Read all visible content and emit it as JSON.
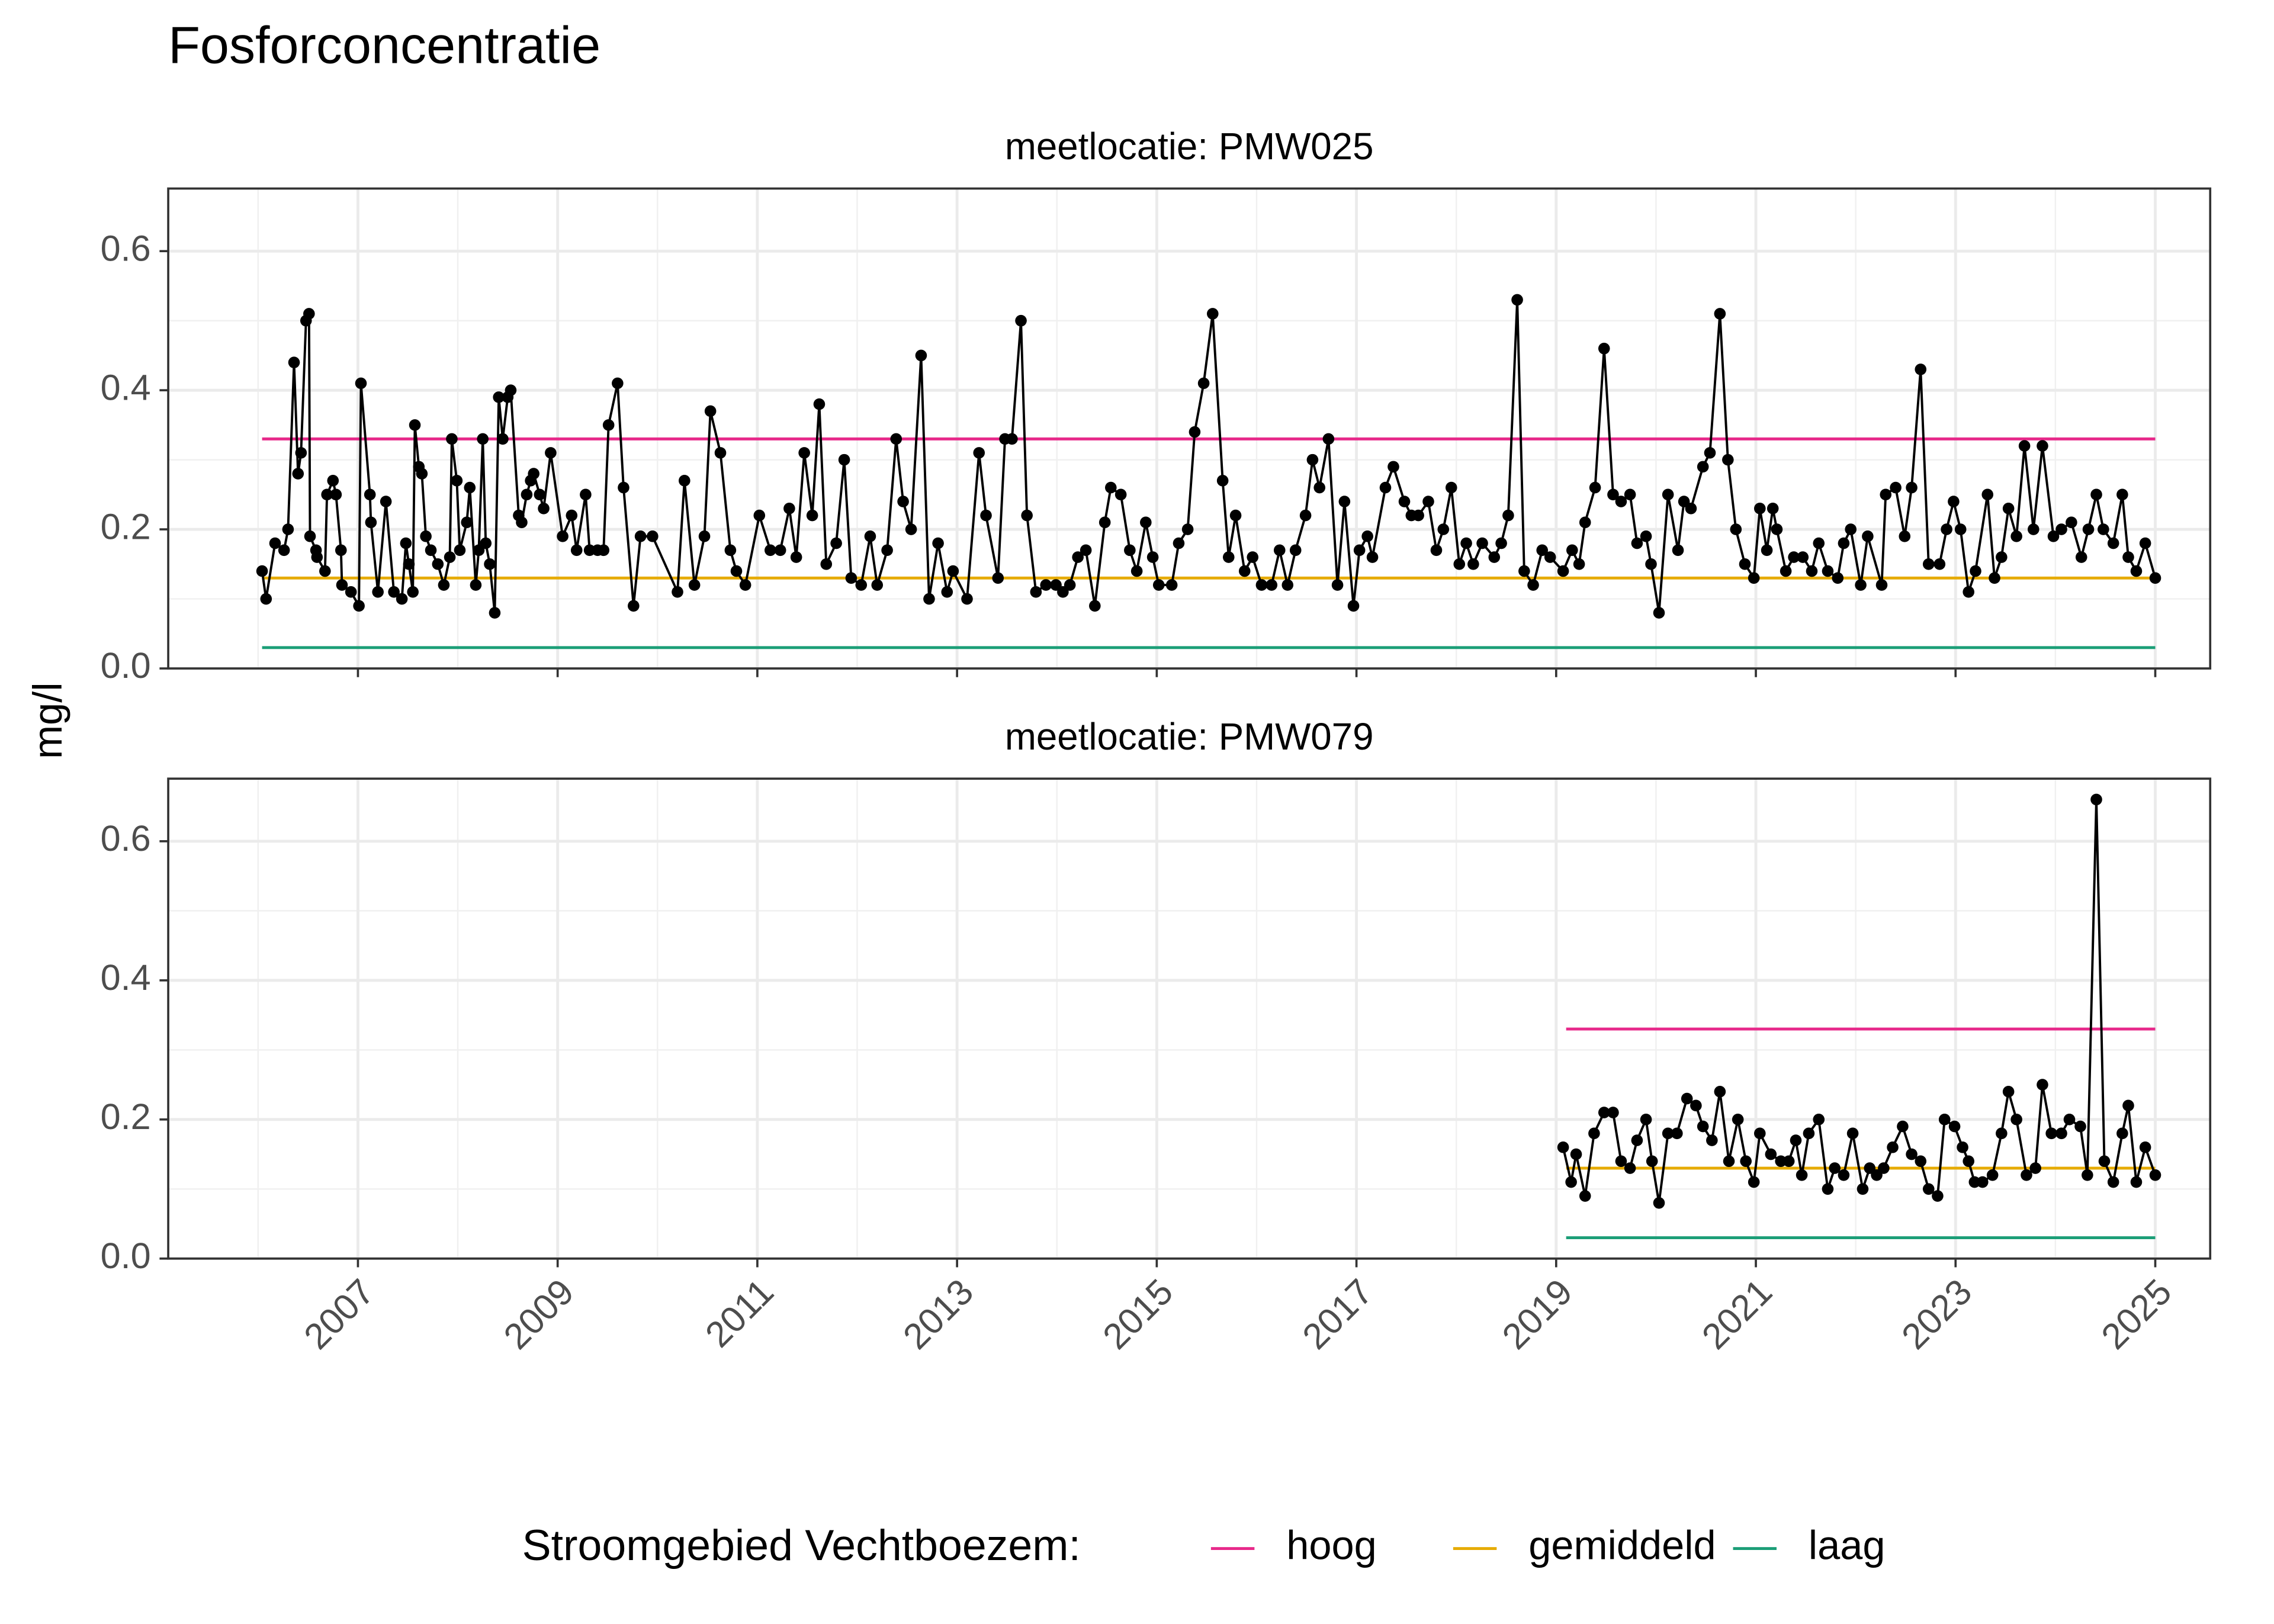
{
  "title": "Fosforconcentratie",
  "y_label": "mg/l",
  "legend_title": "Stroomgebied Vechtboezem:",
  "legend_position": "bottom",
  "chart_data": [
    {
      "type": "line",
      "strip": "meetlocatie: PMW025",
      "xlim": [
        2005.1,
        2025.55
      ],
      "xticks": [
        2007,
        2009,
        2011,
        2013,
        2015,
        2017,
        2019,
        2021,
        2023,
        2025
      ],
      "ylim": [
        0,
        0.69
      ],
      "yticks": [
        {
          "value": 0,
          "label": "0.0"
        },
        0.2,
        0.4,
        0.6
      ],
      "grid": true,
      "series": [
        {
          "color": "#000000",
          "x": [
            2006.04,
            2006.08,
            2006.17,
            2006.26,
            2006.3,
            2006.36,
            2006.4,
            2006.43,
            2006.48,
            2006.51,
            2006.52,
            2006.58,
            2006.59,
            2006.67,
            2006.69,
            2006.75,
            2006.78,
            2006.83,
            2006.84,
            2006.93,
            2007.01,
            2007.03,
            2007.12,
            2007.13,
            2007.2,
            2007.28,
            2007.36,
            2007.44,
            2007.48,
            2007.51,
            2007.55,
            2007.57,
            2007.61,
            2007.64,
            2007.68,
            2007.73,
            2007.8,
            2007.86,
            2007.92,
            2007.94,
            2007.99,
            2008.02,
            2008.09,
            2008.12,
            2008.18,
            2008.21,
            2008.25,
            2008.28,
            2008.32,
            2008.37,
            2008.41,
            2008.45,
            2008.5,
            2008.53,
            2008.61,
            2008.64,
            2008.69,
            2008.73,
            2008.76,
            2008.82,
            2008.86,
            2008.93,
            2009.05,
            2009.14,
            2009.19,
            2009.28,
            2009.32,
            2009.4,
            2009.46,
            2009.51,
            2009.6,
            2009.66,
            2009.76,
            2009.83,
            2009.95,
            2010.2,
            2010.27,
            2010.37,
            2010.47,
            2010.53,
            2010.63,
            2010.73,
            2010.79,
            2010.88,
            2011.02,
            2011.13,
            2011.23,
            2011.32,
            2011.39,
            2011.47,
            2011.55,
            2011.62,
            2011.69,
            2011.79,
            2011.87,
            2011.94,
            2012.04,
            2012.13,
            2012.2,
            2012.3,
            2012.39,
            2012.46,
            2012.54,
            2012.64,
            2012.72,
            2012.81,
            2012.9,
            2012.96,
            2013.1,
            2013.22,
            2013.29,
            2013.41,
            2013.48,
            2013.55,
            2013.64,
            2013.7,
            2013.79,
            2013.89,
            2013.99,
            2014.06,
            2014.13,
            2014.21,
            2014.29,
            2014.38,
            2014.48,
            2014.54,
            2014.64,
            2014.73,
            2014.8,
            2014.89,
            2014.96,
            2015.02,
            2015.15,
            2015.22,
            2015.31,
            2015.38,
            2015.47,
            2015.56,
            2015.66,
            2015.72,
            2015.79,
            2015.88,
            2015.96,
            2016.05,
            2016.15,
            2016.23,
            2016.31,
            2016.39,
            2016.49,
            2016.56,
            2016.63,
            2016.72,
            2016.81,
            2016.88,
            2016.97,
            2017.03,
            2017.11,
            2017.16,
            2017.29,
            2017.37,
            2017.48,
            2017.55,
            2017.62,
            2017.72,
            2017.8,
            2017.87,
            2017.95,
            2018.03,
            2018.1,
            2018.17,
            2018.26,
            2018.38,
            2018.45,
            2018.52,
            2018.61,
            2018.68,
            2018.77,
            2018.86,
            2018.94,
            2019.07,
            2019.16,
            2019.23,
            2019.29,
            2019.39,
            2019.48,
            2019.57,
            2019.65,
            2019.74,
            2019.81,
            2019.9,
            2019.95,
            2020.03,
            2020.12,
            2020.22,
            2020.28,
            2020.35,
            2020.47,
            2020.54,
            2020.64,
            2020.72,
            2020.8,
            2020.89,
            2020.98,
            2021.04,
            2021.11,
            2021.17,
            2021.21,
            2021.3,
            2021.38,
            2021.47,
            2021.56,
            2021.63,
            2021.72,
            2021.82,
            2021.88,
            2021.95,
            2022.05,
            2022.12,
            2022.26,
            2022.3,
            2022.4,
            2022.49,
            2022.56,
            2022.65,
            2022.73,
            2022.84,
            2022.91,
            2022.98,
            2023.05,
            2023.13,
            2023.2,
            2023.32,
            2023.39,
            2023.46,
            2023.53,
            2023.61,
            2023.69,
            2023.78,
            2023.87,
            2023.98,
            2024.06,
            2024.16,
            2024.26,
            2024.33,
            2024.41,
            2024.48,
            2024.58,
            2024.67,
            2024.73,
            2024.81,
            2024.9,
            2025.0
          ],
          "values": [
            0.14,
            0.1,
            0.18,
            0.17,
            0.2,
            0.44,
            0.28,
            0.31,
            0.5,
            0.51,
            0.19,
            0.17,
            0.16,
            0.14,
            0.25,
            0.27,
            0.25,
            0.17,
            0.12,
            0.11,
            0.09,
            0.41,
            0.25,
            0.21,
            0.11,
            0.24,
            0.11,
            0.1,
            0.18,
            0.15,
            0.11,
            0.35,
            0.29,
            0.28,
            0.19,
            0.17,
            0.15,
            0.12,
            0.16,
            0.33,
            0.27,
            0.17,
            0.21,
            0.26,
            0.12,
            0.17,
            0.33,
            0.18,
            0.15,
            0.08,
            0.39,
            0.33,
            0.39,
            0.4,
            0.22,
            0.21,
            0.25,
            0.27,
            0.28,
            0.25,
            0.23,
            0.31,
            0.19,
            0.22,
            0.17,
            0.25,
            0.17,
            0.17,
            0.17,
            0.35,
            0.41,
            0.26,
            0.09,
            0.19,
            0.19,
            0.11,
            0.27,
            0.12,
            0.19,
            0.37,
            0.31,
            0.17,
            0.14,
            0.12,
            0.22,
            0.17,
            0.17,
            0.23,
            0.16,
            0.31,
            0.22,
            0.38,
            0.15,
            0.18,
            0.3,
            0.13,
            0.12,
            0.19,
            0.12,
            0.17,
            0.33,
            0.24,
            0.2,
            0.45,
            0.1,
            0.18,
            0.11,
            0.14,
            0.1,
            0.31,
            0.22,
            0.13,
            0.33,
            0.33,
            0.5,
            0.22,
            0.11,
            0.12,
            0.12,
            0.11,
            0.12,
            0.16,
            0.17,
            0.09,
            0.21,
            0.26,
            0.25,
            0.17,
            0.14,
            0.21,
            0.16,
            0.12,
            0.12,
            0.18,
            0.2,
            0.34,
            0.41,
            0.51,
            0.27,
            0.16,
            0.22,
            0.14,
            0.16,
            0.12,
            0.12,
            0.17,
            0.12,
            0.17,
            0.22,
            0.3,
            0.26,
            0.33,
            0.12,
            0.24,
            0.09,
            0.17,
            0.19,
            0.16,
            0.26,
            0.29,
            0.24,
            0.22,
            0.22,
            0.24,
            0.17,
            0.2,
            0.26,
            0.15,
            0.18,
            0.15,
            0.18,
            0.16,
            0.18,
            0.22,
            0.53,
            0.14,
            0.12,
            0.17,
            0.16,
            0.14,
            0.17,
            0.15,
            0.21,
            0.26,
            0.46,
            0.25,
            0.24,
            0.25,
            0.18,
            0.19,
            0.15,
            0.08,
            0.25,
            0.17,
            0.24,
            0.23,
            0.29,
            0.31,
            0.51,
            0.3,
            0.2,
            0.15,
            0.13,
            0.23,
            0.17,
            0.23,
            0.2,
            0.14,
            0.16,
            0.16,
            0.14,
            0.18,
            0.14,
            0.13,
            0.18,
            0.2,
            0.12,
            0.19,
            0.12,
            0.25,
            0.26,
            0.19,
            0.26,
            0.43,
            0.15,
            0.15,
            0.2,
            0.24,
            0.2,
            0.11,
            0.14,
            0.25,
            0.13,
            0.16,
            0.23,
            0.19,
            0.32,
            0.2,
            0.32,
            0.19,
            0.2,
            0.21,
            0.16,
            0.2,
            0.25,
            0.2,
            0.18,
            0.25,
            0.16,
            0.14,
            0.18,
            0.13
          ]
        }
      ],
      "thresholds": [
        {
          "name": "hoog",
          "color": "#e7298a",
          "value": 0.33,
          "x": [
            2006.04,
            2025.0
          ]
        },
        {
          "name": "gemiddeld",
          "color": "#e6ab02",
          "value": 0.13,
          "x": [
            2006.04,
            2025.0
          ]
        },
        {
          "name": "laag",
          "color": "#1b9e77",
          "value": 0.03,
          "x": [
            2006.04,
            2025.0
          ]
        }
      ]
    },
    {
      "type": "line",
      "strip": "meetlocatie: PMW079",
      "xlim": [
        2005.1,
        2025.55
      ],
      "xticks": [
        2007,
        2009,
        2011,
        2013,
        2015,
        2017,
        2019,
        2021,
        2023,
        2025
      ],
      "ylim": [
        0,
        0.69
      ],
      "yticks": [
        {
          "value": 0,
          "label": "0.0"
        },
        0.2,
        0.4,
        0.6
      ],
      "grid": true,
      "series": [
        {
          "color": "#000000",
          "x": [
            2019.07,
            2019.15,
            2019.2,
            2019.29,
            2019.38,
            2019.48,
            2019.57,
            2019.65,
            2019.74,
            2019.81,
            2019.9,
            2019.96,
            2020.03,
            2020.12,
            2020.21,
            2020.31,
            2020.4,
            2020.47,
            2020.56,
            2020.64,
            2020.73,
            2020.82,
            2020.9,
            2020.98,
            2021.04,
            2021.15,
            2021.25,
            2021.33,
            2021.4,
            2021.46,
            2021.53,
            2021.63,
            2021.72,
            2021.79,
            2021.88,
            2021.97,
            2022.07,
            2022.14,
            2022.21,
            2022.28,
            2022.37,
            2022.47,
            2022.56,
            2022.65,
            2022.73,
            2022.82,
            2022.89,
            2022.99,
            2023.07,
            2023.13,
            2023.19,
            2023.27,
            2023.37,
            2023.46,
            2023.53,
            2023.61,
            2023.71,
            2023.8,
            2023.87,
            2023.96,
            2024.06,
            2024.14,
            2024.25,
            2024.32,
            2024.41,
            2024.49,
            2024.58,
            2024.67,
            2024.73,
            2024.81,
            2024.9,
            2025.0
          ],
          "values": [
            0.16,
            0.11,
            0.15,
            0.09,
            0.18,
            0.21,
            0.21,
            0.14,
            0.13,
            0.17,
            0.2,
            0.14,
            0.08,
            0.18,
            0.18,
            0.23,
            0.22,
            0.19,
            0.17,
            0.24,
            0.14,
            0.2,
            0.14,
            0.11,
            0.18,
            0.15,
            0.14,
            0.14,
            0.17,
            0.12,
            0.18,
            0.2,
            0.1,
            0.13,
            0.12,
            0.18,
            0.1,
            0.13,
            0.12,
            0.13,
            0.16,
            0.19,
            0.15,
            0.14,
            0.1,
            0.09,
            0.2,
            0.19,
            0.16,
            0.14,
            0.11,
            0.11,
            0.12,
            0.18,
            0.24,
            0.2,
            0.12,
            0.13,
            0.25,
            0.18,
            0.18,
            0.2,
            0.19,
            0.12,
            0.66,
            0.14,
            0.11,
            0.18,
            0.22,
            0.11,
            0.16,
            0.12
          ]
        }
      ],
      "thresholds": [
        {
          "name": "hoog",
          "color": "#e7298a",
          "value": 0.33,
          "x": [
            2019.1,
            2025.0
          ]
        },
        {
          "name": "gemiddeld",
          "color": "#e6ab02",
          "value": 0.13,
          "x": [
            2019.1,
            2025.0
          ]
        },
        {
          "name": "laag",
          "color": "#1b9e77",
          "value": 0.03,
          "x": [
            2019.1,
            2025.0
          ]
        }
      ]
    }
  ]
}
